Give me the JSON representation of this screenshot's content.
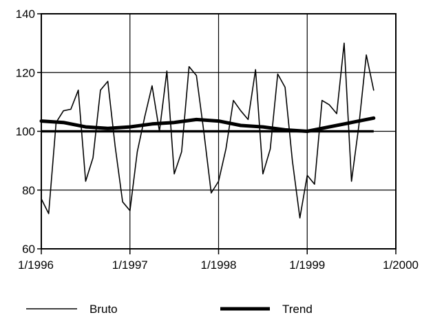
{
  "chart_data": {
    "type": "line",
    "title": "",
    "xlabel": "",
    "ylabel": "",
    "xlim": [
      1996.0,
      2000.0
    ],
    "ylim": [
      60,
      140
    ],
    "x_ticks": [
      1996,
      1997,
      1998,
      1999,
      2000
    ],
    "x_tick_labels": [
      "1/1996",
      "1/1997",
      "1/1998",
      "1/1999",
      "1/2000"
    ],
    "y_ticks": [
      60,
      80,
      100,
      120,
      140
    ],
    "y_tick_labels": [
      "60",
      "80",
      "100",
      "120",
      "140"
    ],
    "grid": true,
    "legend_position": "bottom",
    "reference_line": {
      "y": 100
    },
    "series": [
      {
        "name": "Bruto",
        "style": "thin",
        "color": "#000000",
        "x": [
          1996.0,
          1996.083,
          1996.167,
          1996.25,
          1996.333,
          1996.417,
          1996.5,
          1996.583,
          1996.667,
          1996.75,
          1996.833,
          1996.917,
          1997.0,
          1997.083,
          1997.167,
          1997.25,
          1997.333,
          1997.417,
          1997.5,
          1997.583,
          1997.667,
          1997.75,
          1997.833,
          1997.917,
          1998.0,
          1998.083,
          1998.167,
          1998.25,
          1998.333,
          1998.417,
          1998.5,
          1998.583,
          1998.667,
          1998.75,
          1998.833,
          1998.917,
          1999.0,
          1999.083,
          1999.167,
          1999.25,
          1999.333,
          1999.417,
          1999.5,
          1999.583,
          1999.667,
          1999.75
        ],
        "y": [
          77,
          72,
          103,
          107,
          107.5,
          114,
          83,
          91,
          114,
          117,
          95,
          76,
          73,
          93,
          105,
          115.5,
          100,
          120.5,
          85.5,
          93,
          122,
          119,
          100,
          79,
          83,
          94,
          110.5,
          107,
          104,
          121,
          85.5,
          94,
          119.5,
          115,
          90,
          70.5,
          85,
          82,
          110.5,
          109,
          106,
          130,
          83,
          102,
          126,
          114
        ]
      },
      {
        "name": "Trend",
        "style": "thick",
        "color": "#000000",
        "x": [
          1996.0,
          1996.25,
          1996.5,
          1996.75,
          1997.0,
          1997.25,
          1997.5,
          1997.75,
          1998.0,
          1998.25,
          1998.5,
          1998.75,
          1999.0,
          1999.25,
          1999.5,
          1999.75
        ],
        "y": [
          103.5,
          103,
          101.5,
          101,
          101.5,
          102.5,
          103,
          104,
          103.5,
          102,
          101.5,
          100.5,
          100,
          101.5,
          103,
          104.5
        ]
      }
    ]
  }
}
